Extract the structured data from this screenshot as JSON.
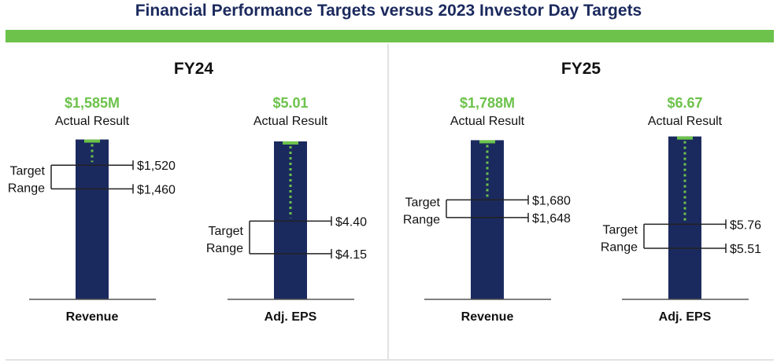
{
  "title": "Financial Performance Targets versus 2023 Investor Day Targets",
  "colors": {
    "bar": "#1b2a5e",
    "accent": "#6cc24a",
    "title": "#1b2a5e",
    "text": "#111111"
  },
  "target_range_label": [
    "Target",
    "Range"
  ],
  "chart_data": [
    {
      "type": "bar",
      "period": "FY24",
      "category": "Revenue",
      "actual_value": 1585,
      "actual_label": "$1,585M",
      "actual_caption": "Actual Result",
      "target_low": 1460,
      "target_low_label": "$1,460",
      "target_high": 1520,
      "target_high_label": "$1,520",
      "ylim": [
        1180,
        1600
      ]
    },
    {
      "type": "bar",
      "period": "FY24",
      "category": "Adj. EPS",
      "actual_value": 5.01,
      "actual_label": "$5.01",
      "actual_caption": "Actual Result",
      "target_low": 4.15,
      "target_low_label": "$4.15",
      "target_high": 4.4,
      "target_high_label": "$4.40",
      "ylim": [
        3.8,
        5.07
      ]
    },
    {
      "type": "bar",
      "period": "FY25",
      "category": "Revenue",
      "actual_value": 1788,
      "actual_label": "$1,788M",
      "actual_caption": "Actual Result",
      "target_low": 1648,
      "target_low_label": "$1,648",
      "target_high": 1680,
      "target_high_label": "$1,680",
      "ylim": [
        1500,
        1800
      ]
    },
    {
      "type": "bar",
      "period": "FY25",
      "category": "Adj. EPS",
      "actual_value": 6.67,
      "actual_label": "$6.67",
      "actual_caption": "Actual Result",
      "target_low": 5.51,
      "target_low_label": "$5.51",
      "target_high": 5.76,
      "target_high_label": "$5.76",
      "ylim": [
        4.98,
        6.7
      ]
    }
  ],
  "periods": [
    "FY24",
    "FY25"
  ]
}
